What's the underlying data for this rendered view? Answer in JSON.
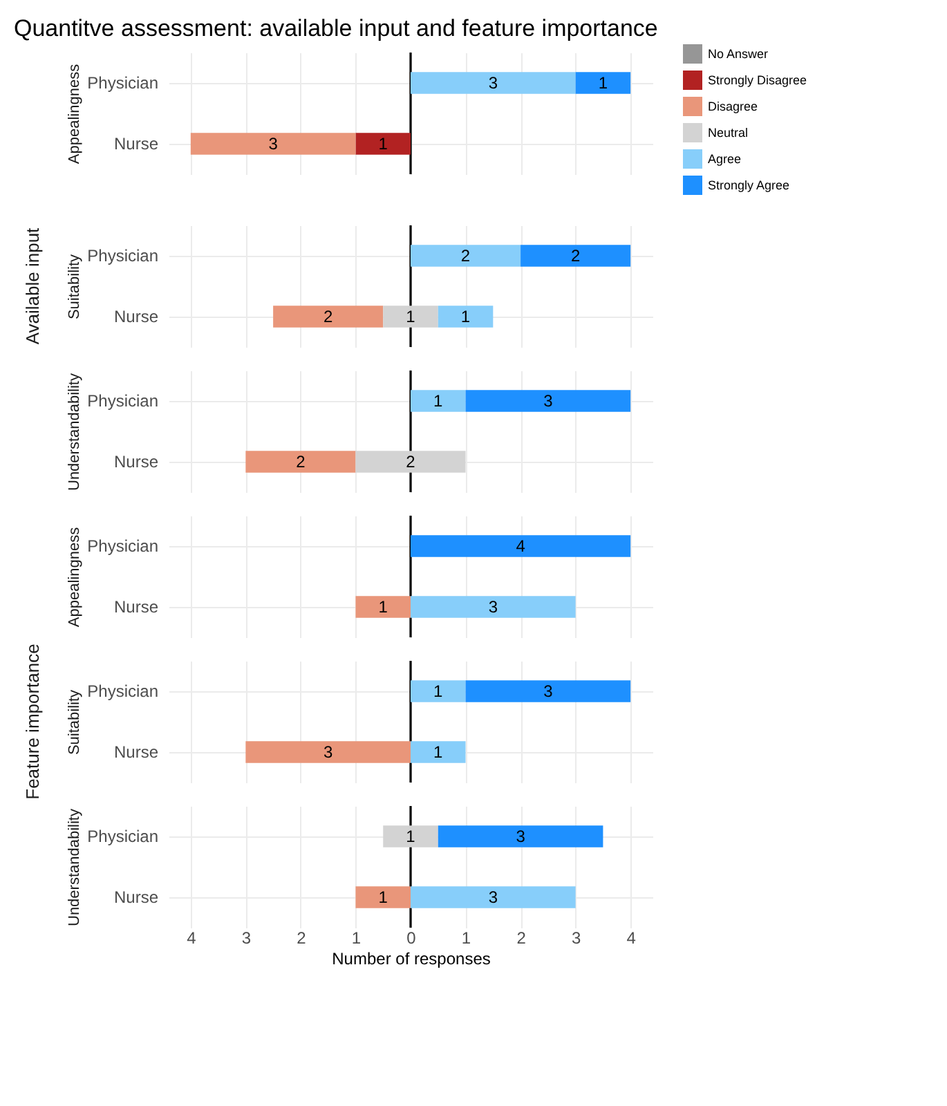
{
  "chart_data": [
    {
      "type": "bar",
      "orientation": "horizontal",
      "title": "Quantitve assessment: available input and feature importance",
      "ylabel": "Appealingness",
      "categories": [
        "Physician",
        "Nurse"
      ],
      "xlim": [
        -4.4,
        4.4
      ],
      "xticks": [
        -4,
        -3,
        -2,
        -1,
        0,
        1,
        2,
        3,
        4
      ],
      "tick_labels": "y",
      "grid": true,
      "data_labels": true,
      "legend": "right",
      "ref_lines": [
        {
          "axis": "x",
          "value": 0,
          "color": "#000000"
        }
      ],
      "series": [
        {
          "name": "No Answer",
          "color": "#969696",
          "values": [
            null,
            null
          ],
          "base": [
            null,
            null
          ]
        },
        {
          "name": "Strongly Disagree",
          "color": "#b22222",
          "values": [
            null,
            1
          ],
          "base": [
            null,
            -1
          ]
        },
        {
          "name": "Disagree",
          "color": "#e9967a",
          "values": [
            null,
            3
          ],
          "base": [
            null,
            -4
          ]
        },
        {
          "name": "Neutral",
          "color": "#d3d3d3",
          "values": [
            null,
            null
          ],
          "base": [
            null,
            null
          ]
        },
        {
          "name": "Agree",
          "color": "#87cefa",
          "values": [
            3,
            null
          ],
          "base": [
            0,
            null
          ]
        },
        {
          "name": "Strongly Agree",
          "color": "#1e90ff",
          "values": [
            1,
            null
          ],
          "base": [
            3,
            null
          ]
        }
      ]
    },
    {
      "type": "bar",
      "orientation": "horizontal",
      "ylabel": "Suitability",
      "annotations": [
        "Available input"
      ],
      "categories": [
        "Physician",
        "Nurse"
      ],
      "xlim": [
        -4.4,
        4.4
      ],
      "xticks": [
        -4,
        -3,
        -2,
        -1,
        0,
        1,
        2,
        3,
        4
      ],
      "tick_labels": "y",
      "grid": true,
      "data_labels": true,
      "ref_lines": [
        {
          "axis": "x",
          "value": 0,
          "color": "#000000"
        }
      ],
      "series": [
        {
          "color": "#e9967a",
          "values": [
            null,
            2
          ],
          "base": [
            null,
            -2.5
          ]
        },
        {
          "color": "#d3d3d3",
          "values": [
            null,
            1
          ],
          "base": [
            null,
            -0.5
          ]
        },
        {
          "color": "#87cefa",
          "values": [
            2,
            1
          ],
          "base": [
            0,
            0.5
          ]
        },
        {
          "color": "#1e90ff",
          "values": [
            2,
            null
          ],
          "base": [
            2,
            null
          ]
        }
      ]
    },
    {
      "type": "bar",
      "orientation": "horizontal",
      "ylabel": "Understandability",
      "categories": [
        "Physician",
        "Nurse"
      ],
      "xlim": [
        -4.4,
        4.4
      ],
      "xticks": [
        -4,
        -3,
        -2,
        -1,
        0,
        1,
        2,
        3,
        4
      ],
      "tick_labels": "y",
      "grid": true,
      "data_labels": true,
      "ref_lines": [
        {
          "axis": "x",
          "value": 0,
          "color": "#000000"
        }
      ],
      "series": [
        {
          "color": "#e9967a",
          "values": [
            null,
            2
          ],
          "base": [
            null,
            -3
          ]
        },
        {
          "color": "#d3d3d3",
          "values": [
            null,
            2
          ],
          "base": [
            null,
            -1
          ]
        },
        {
          "color": "#87cefa",
          "values": [
            1,
            null
          ],
          "base": [
            0,
            null
          ]
        },
        {
          "color": "#1e90ff",
          "values": [
            3,
            null
          ],
          "base": [
            1,
            null
          ]
        }
      ]
    },
    {
      "type": "bar",
      "orientation": "horizontal",
      "ylabel": "Appealingness",
      "categories": [
        "Physician",
        "Nurse"
      ],
      "xlim": [
        -4.4,
        4.4
      ],
      "xticks": [
        -4,
        -3,
        -2,
        -1,
        0,
        1,
        2,
        3,
        4
      ],
      "tick_labels": "y",
      "grid": true,
      "data_labels": true,
      "ref_lines": [
        {
          "axis": "x",
          "value": 0,
          "color": "#000000"
        }
      ],
      "series": [
        {
          "color": "#e9967a",
          "values": [
            null,
            1
          ],
          "base": [
            null,
            -1
          ]
        },
        {
          "color": "#87cefa",
          "values": [
            null,
            3
          ],
          "base": [
            null,
            0
          ]
        },
        {
          "color": "#1e90ff",
          "values": [
            4,
            null
          ],
          "base": [
            0,
            null
          ]
        }
      ]
    },
    {
      "type": "bar",
      "orientation": "horizontal",
      "ylabel": "Suitability",
      "annotations": [
        "Feature importance"
      ],
      "categories": [
        "Physician",
        "Nurse"
      ],
      "xlim": [
        -4.4,
        4.4
      ],
      "xticks": [
        -4,
        -3,
        -2,
        -1,
        0,
        1,
        2,
        3,
        4
      ],
      "tick_labels": "y",
      "grid": true,
      "data_labels": true,
      "ref_lines": [
        {
          "axis": "x",
          "value": 0,
          "color": "#000000"
        }
      ],
      "series": [
        {
          "color": "#e9967a",
          "values": [
            null,
            3
          ],
          "base": [
            null,
            -3
          ]
        },
        {
          "color": "#87cefa",
          "values": [
            1,
            1
          ],
          "base": [
            0,
            0
          ]
        },
        {
          "color": "#1e90ff",
          "values": [
            3,
            null
          ],
          "base": [
            1,
            null
          ]
        }
      ]
    },
    {
      "type": "bar",
      "orientation": "horizontal",
      "ylabel": "Understandability",
      "xlabel": "Number of responses",
      "categories": [
        "Physician",
        "Nurse"
      ],
      "xlim": [
        -4.4,
        4.4
      ],
      "xticks": [
        {
          "value": -4,
          "label": "4"
        },
        {
          "value": -3,
          "label": "3"
        },
        {
          "value": -2,
          "label": "2"
        },
        {
          "value": -1,
          "label": "1"
        },
        0,
        1,
        2,
        3,
        4
      ],
      "grid": true,
      "data_labels": true,
      "ref_lines": [
        {
          "axis": "x",
          "value": 0,
          "color": "#000000"
        }
      ],
      "series": [
        {
          "color": "#e9967a",
          "values": [
            null,
            1
          ],
          "base": [
            null,
            -1
          ]
        },
        {
          "color": "#d3d3d3",
          "values": [
            1,
            null
          ],
          "base": [
            -0.5,
            null
          ]
        },
        {
          "color": "#87cefa",
          "values": [
            null,
            3
          ],
          "base": [
            null,
            0
          ]
        },
        {
          "color": "#1e90ff",
          "values": [
            3,
            null
          ],
          "base": [
            0.5,
            null
          ]
        }
      ]
    }
  ]
}
